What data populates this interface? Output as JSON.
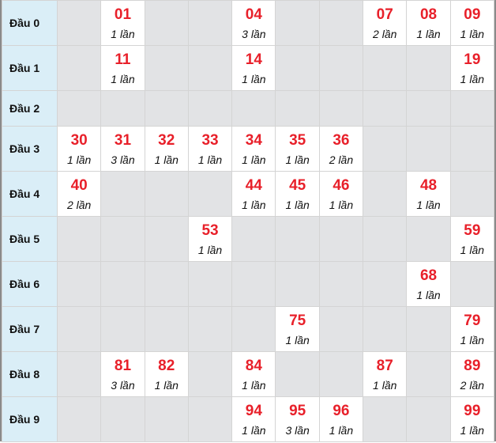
{
  "count_suffix": "lần",
  "rows": [
    {
      "label": "Đầu 0",
      "cells": [
        null,
        {
          "num": "01",
          "count": "1 lần"
        },
        null,
        null,
        {
          "num": "04",
          "count": "3 lần"
        },
        null,
        null,
        {
          "num": "07",
          "count": "2 lần"
        },
        {
          "num": "08",
          "count": "1 lần"
        },
        {
          "num": "09",
          "count": "1 lần"
        }
      ]
    },
    {
      "label": "Đầu 1",
      "cells": [
        null,
        {
          "num": "11",
          "count": "1 lần"
        },
        null,
        null,
        {
          "num": "14",
          "count": "1 lần"
        },
        null,
        null,
        null,
        null,
        {
          "num": "19",
          "count": "1 lần"
        }
      ]
    },
    {
      "label": "Đầu 2",
      "cells": [
        null,
        null,
        null,
        null,
        null,
        null,
        null,
        null,
        null,
        null
      ]
    },
    {
      "label": "Đầu 3",
      "cells": [
        {
          "num": "30",
          "count": "1 lần"
        },
        {
          "num": "31",
          "count": "3 lần"
        },
        {
          "num": "32",
          "count": "1 lần"
        },
        {
          "num": "33",
          "count": "1 lần"
        },
        {
          "num": "34",
          "count": "1 lần"
        },
        {
          "num": "35",
          "count": "1 lần"
        },
        {
          "num": "36",
          "count": "2 lần"
        },
        null,
        null,
        null
      ]
    },
    {
      "label": "Đầu 4",
      "cells": [
        {
          "num": "40",
          "count": "2 lần"
        },
        null,
        null,
        null,
        {
          "num": "44",
          "count": "1 lần"
        },
        {
          "num": "45",
          "count": "1 lần"
        },
        {
          "num": "46",
          "count": "1 lần"
        },
        null,
        {
          "num": "48",
          "count": "1 lần"
        },
        null
      ]
    },
    {
      "label": "Đầu 5",
      "cells": [
        null,
        null,
        null,
        {
          "num": "53",
          "count": "1 lần"
        },
        null,
        null,
        null,
        null,
        null,
        {
          "num": "59",
          "count": "1 lần"
        }
      ]
    },
    {
      "label": "Đầu 6",
      "cells": [
        null,
        null,
        null,
        null,
        null,
        null,
        null,
        null,
        {
          "num": "68",
          "count": "1 lần"
        },
        null
      ]
    },
    {
      "label": "Đầu 7",
      "cells": [
        null,
        null,
        null,
        null,
        null,
        {
          "num": "75",
          "count": "1 lần"
        },
        null,
        null,
        null,
        {
          "num": "79",
          "count": "1 lần"
        }
      ]
    },
    {
      "label": "Đầu 8",
      "cells": [
        null,
        {
          "num": "81",
          "count": "3 lần"
        },
        {
          "num": "82",
          "count": "1 lần"
        },
        null,
        {
          "num": "84",
          "count": "1 lần"
        },
        null,
        null,
        {
          "num": "87",
          "count": "1 lần"
        },
        null,
        {
          "num": "89",
          "count": "2 lần"
        }
      ]
    },
    {
      "label": "Đầu 9",
      "cells": [
        null,
        null,
        null,
        null,
        {
          "num": "94",
          "count": "1 lần"
        },
        {
          "num": "95",
          "count": "3 lần"
        },
        {
          "num": "96",
          "count": "1 lần"
        },
        null,
        null,
        {
          "num": "99",
          "count": "1 lần"
        }
      ]
    }
  ],
  "colors": {
    "number": "#e8202a",
    "head_bg": "#daeef7",
    "empty_bg": "#e2e3e5",
    "filled_bg": "#ffffff"
  }
}
